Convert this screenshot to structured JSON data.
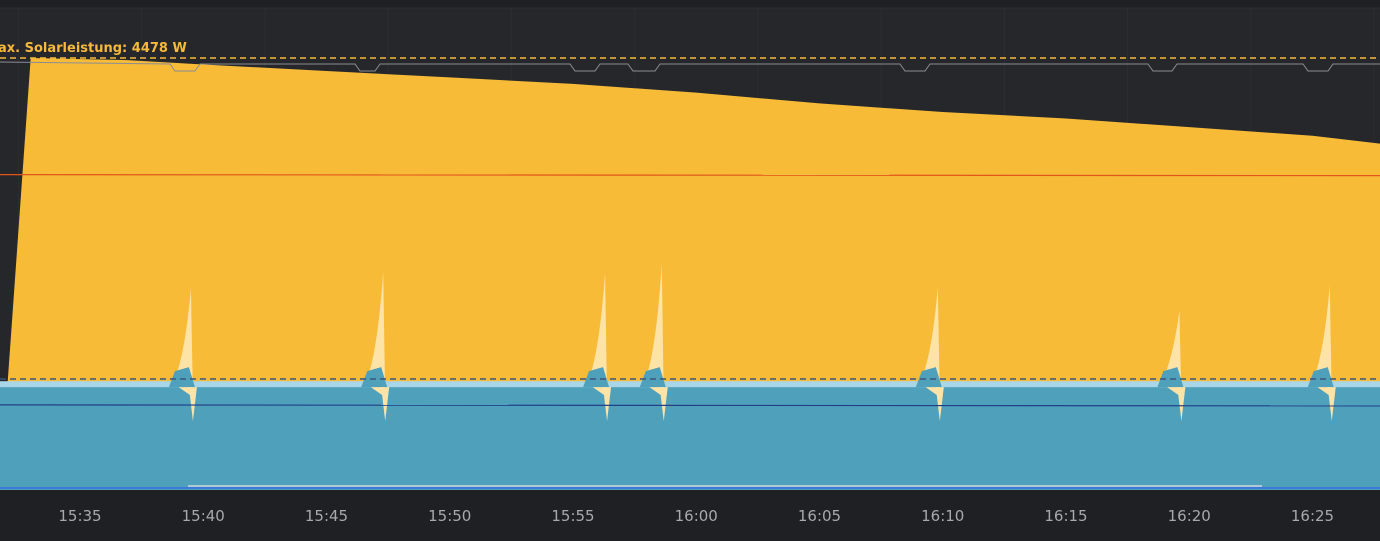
{
  "chart_data": {
    "type": "area",
    "annotation": "ax. Solarleistung: 4478 W",
    "x_ticks": [
      "15:35",
      "15:40",
      "15:45",
      "15:50",
      "15:55",
      "16:00",
      "16:05",
      "16:10",
      "16:15",
      "16:20",
      "16:25"
    ],
    "x_range": [
      "15:33",
      "16:28"
    ],
    "grid": true,
    "colors": {
      "background": "#1f2024",
      "grid": "#2b2d32",
      "solar": "#f7bb38",
      "solar_spike": "#fde3a6",
      "consumption": "#4fa0bb",
      "consumption_top": "#a8d6e7",
      "reference_line": "#e1561a",
      "consumption_line": "#21408b",
      "dashed_line_top": "#f6b93b",
      "dashed_line_mid": "#39547b",
      "limit_line": "#8a8d94"
    },
    "series": [
      {
        "key": "solar",
        "points": [
          [
            "15:33",
            1.0
          ],
          [
            "15:37",
            0.995
          ],
          [
            "15:40",
            0.985
          ],
          [
            "15:45",
            0.97
          ],
          [
            "15:50",
            0.955
          ],
          [
            "15:55",
            0.94
          ],
          [
            "16:00",
            0.92
          ],
          [
            "16:05",
            0.895
          ],
          [
            "16:10",
            0.875
          ],
          [
            "16:15",
            0.86
          ],
          [
            "16:20",
            0.84
          ],
          [
            "16:25",
            0.82
          ],
          [
            "16:28",
            0.8
          ]
        ]
      },
      {
        "key": "consumption",
        "base_level": 0.238,
        "events": [
          {
            "time": "15:39.5",
            "peak": 0.21
          },
          {
            "time": "15:47.3",
            "peak": 0.248
          },
          {
            "time": "15:56.3",
            "peak": 0.245
          },
          {
            "time": "15:58.6",
            "peak": 0.266
          },
          {
            "time": "16:09.8",
            "peak": 0.213
          },
          {
            "time": "16:19.6",
            "peak": 0.158
          },
          {
            "time": "16:25.7",
            "peak": 0.217
          }
        ]
      }
    ],
    "levels": {
      "dashed_top": 1.0,
      "reference": 0.73,
      "dashed_mid": 0.257,
      "consumption_line": 0.197
    }
  }
}
